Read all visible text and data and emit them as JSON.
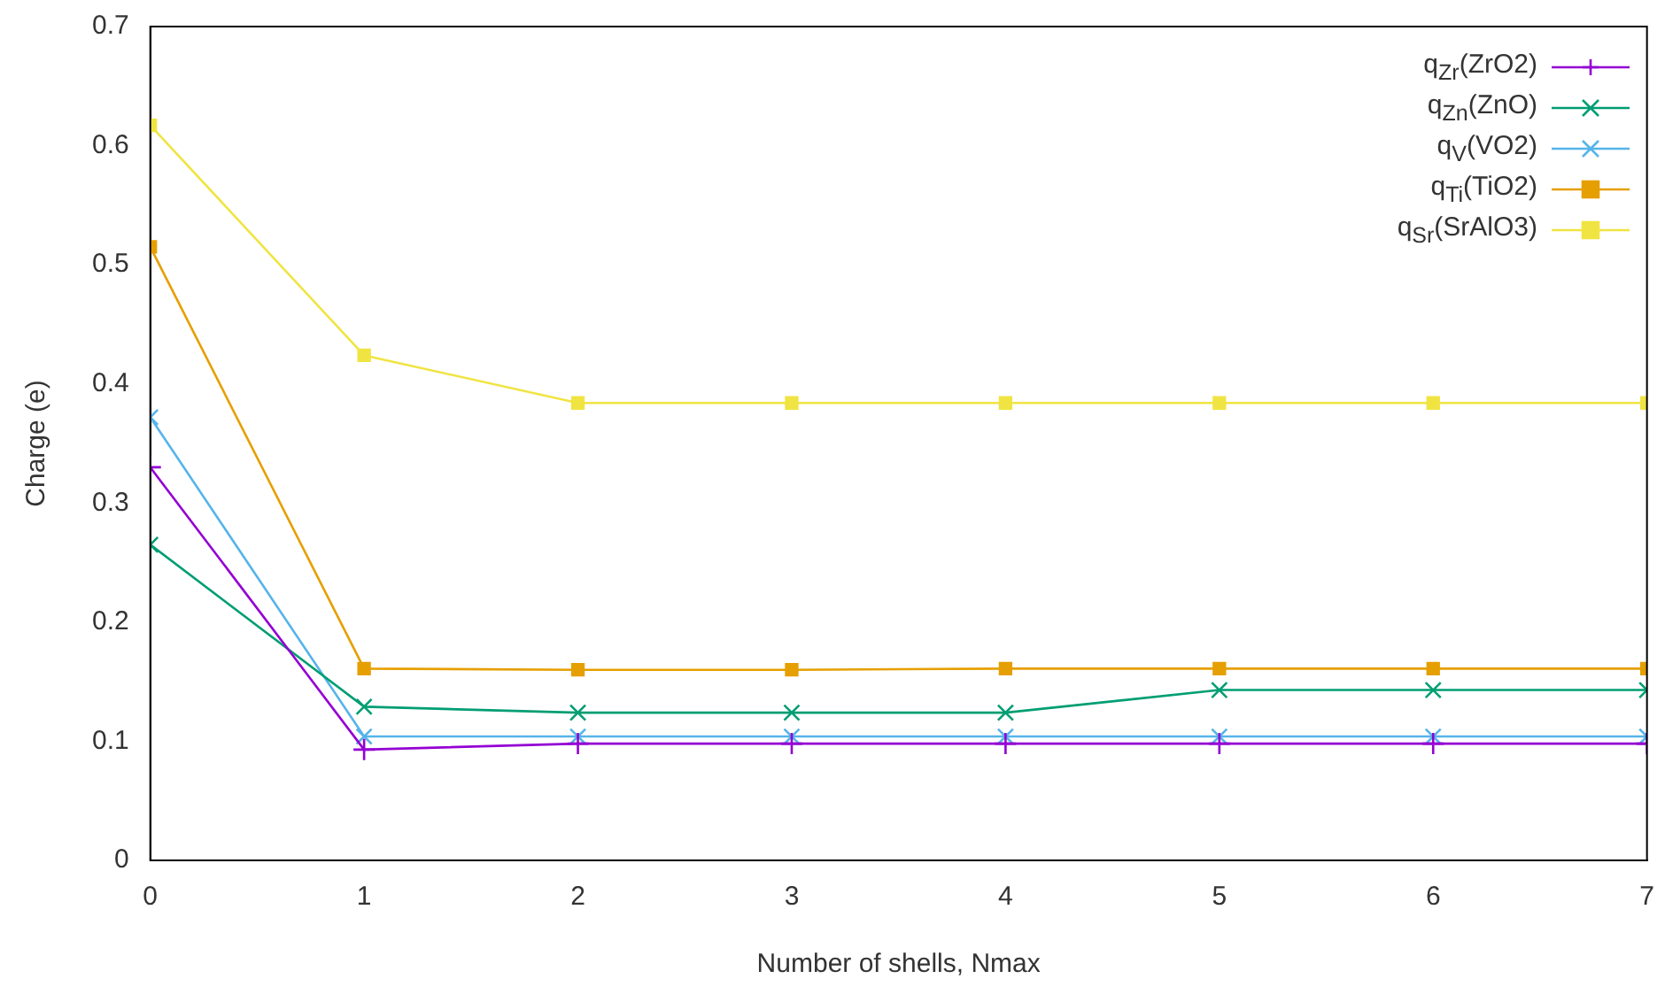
{
  "chart_data": {
    "type": "line",
    "xlabel": "Number of shells, Nmax",
    "ylabel": "Charge (e)",
    "x": [
      0,
      1,
      2,
      3,
      4,
      5,
      6,
      7
    ],
    "xlim": [
      0,
      7
    ],
    "xticks": [
      0,
      1,
      2,
      3,
      4,
      5,
      6,
      7
    ],
    "ylim": [
      0,
      0.7
    ],
    "yticks": [
      0,
      0.1,
      0.2,
      0.3,
      0.4,
      0.5,
      0.6,
      0.7
    ],
    "grid": false,
    "legend": "top right",
    "series": [
      {
        "name": "q$_{Zr}$(ZrO2)",
        "color": "#9400d3",
        "marker": "plus",
        "values": [
          0.33,
          0.093,
          0.098,
          0.098,
          0.098,
          0.098,
          0.098,
          0.098
        ]
      },
      {
        "name": "q$_{Zn}$(ZnO)",
        "color": "#009e73",
        "marker": "cross",
        "values": [
          0.265,
          0.129,
          0.124,
          0.124,
          0.124,
          0.143,
          0.143,
          0.143
        ]
      },
      {
        "name": "q$_{V}$(VO2)",
        "color": "#56b4e9",
        "marker": "cross",
        "values": [
          0.372,
          0.104,
          0.104,
          0.104,
          0.104,
          0.104,
          0.104,
          0.104
        ]
      },
      {
        "name": "q$_{Ti}$(TiO2)",
        "color": "#e69f00",
        "marker": "square",
        "values": [
          0.515,
          0.161,
          0.16,
          0.16,
          0.161,
          0.161,
          0.161,
          0.161
        ]
      },
      {
        "name": "q$_{Sr}$(SrAlO3)",
        "color": "#f0e442",
        "marker": "square",
        "values": [
          0.617,
          0.424,
          0.384,
          0.384,
          0.384,
          0.384,
          0.384,
          0.384
        ]
      }
    ]
  }
}
